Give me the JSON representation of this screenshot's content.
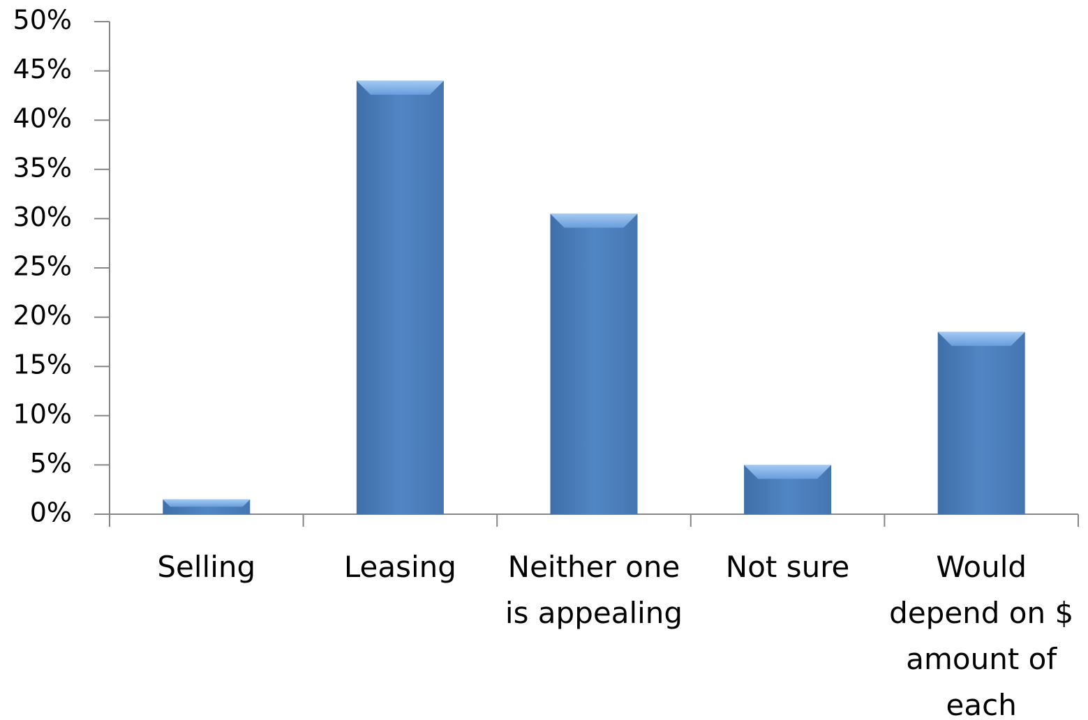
{
  "chart_data": {
    "type": "bar",
    "categories": [
      "Selling",
      "Leasing",
      "Neither one is appealing",
      "Not sure",
      "Would depend on $ amount of each"
    ],
    "values": [
      1.5,
      44,
      30.5,
      5,
      18.5
    ],
    "color": "#4a7ebb",
    "ylim": [
      0,
      50
    ],
    "yticks": [
      {
        "value": 0,
        "label": "0%"
      },
      {
        "value": 5,
        "label": "5%"
      },
      {
        "value": 10,
        "label": "10%"
      },
      {
        "value": 15,
        "label": "15%"
      },
      {
        "value": 20,
        "label": "20%"
      },
      {
        "value": 25,
        "label": "25%"
      },
      {
        "value": 30,
        "label": "30%"
      },
      {
        "value": 35,
        "label": "35%"
      },
      {
        "value": 40,
        "label": "40%"
      },
      {
        "value": 45,
        "label": "45%"
      },
      {
        "value": 50,
        "label": "50%"
      }
    ],
    "grid": false
  }
}
